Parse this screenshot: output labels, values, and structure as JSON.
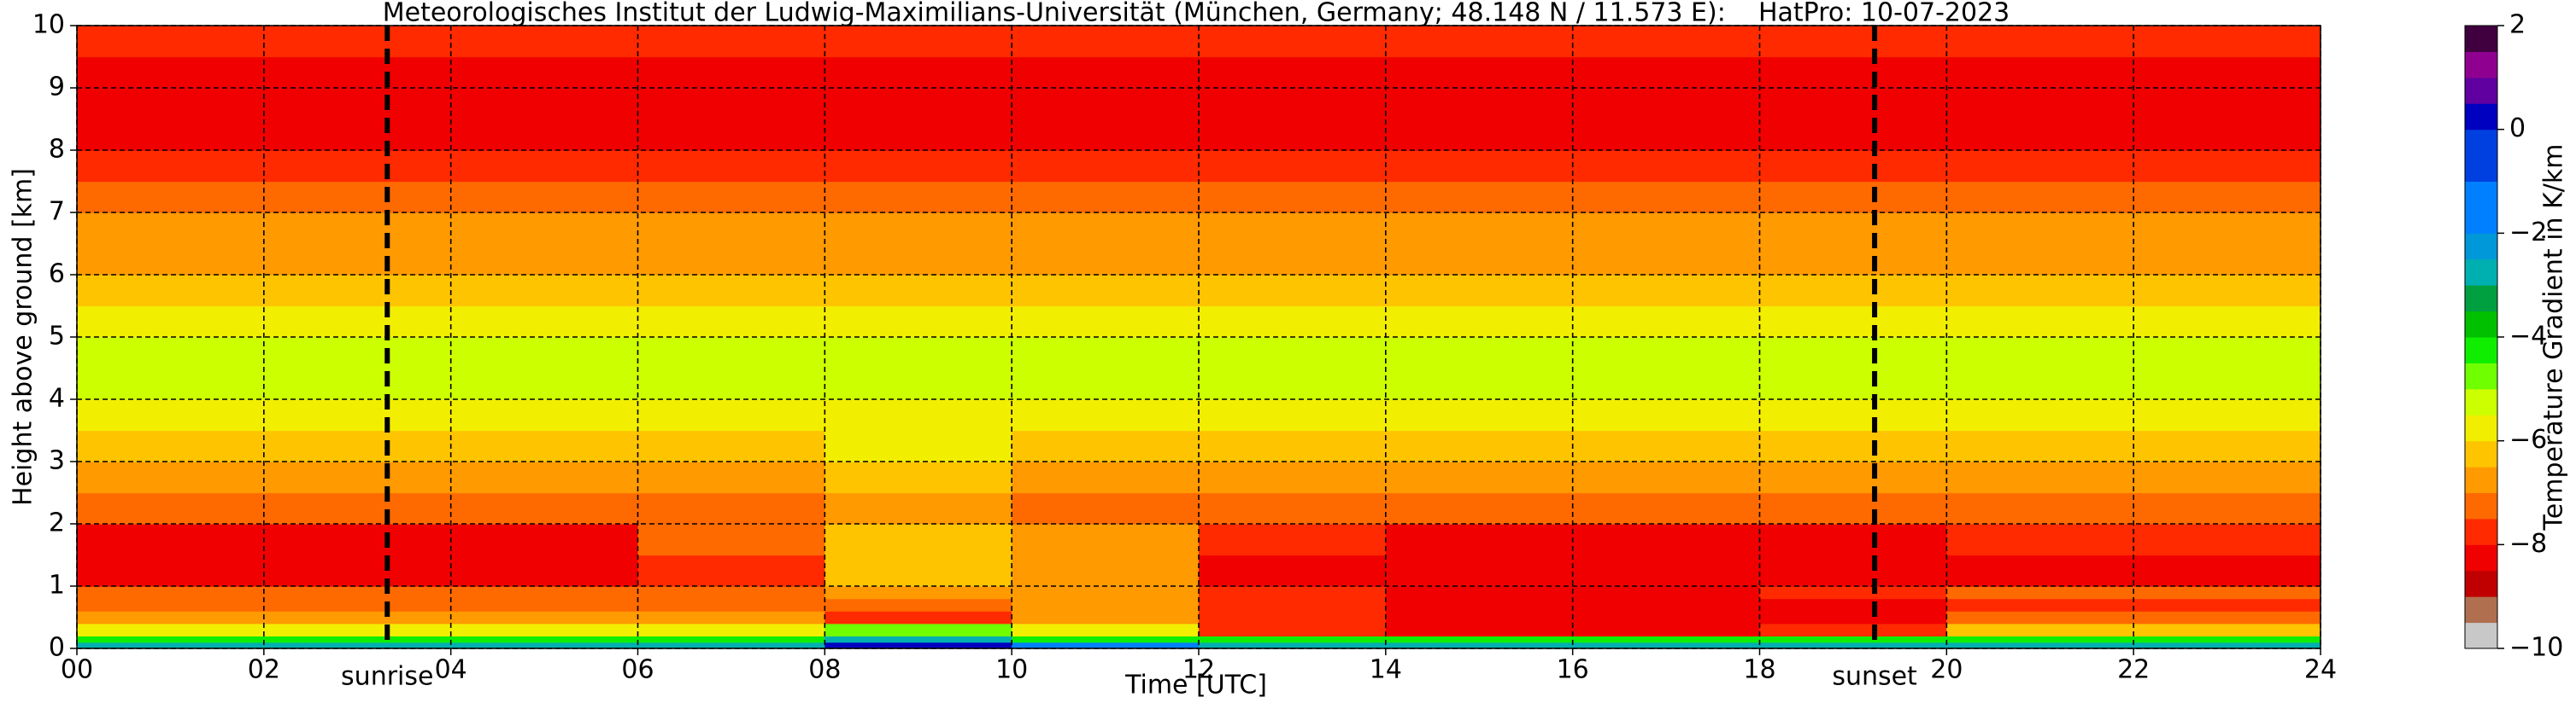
{
  "chart_data": {
    "type": "heatmap",
    "title": "Meteorologisches Institut der Ludwig-Maximilians-Universität (München, Germany; 48.148 N / 11.573 E):    HatPro: 10-07-2023",
    "xlabel": "Time [UTC]",
    "ylabel": "Height above ground [km]",
    "colorbar_label": "Temperature Gradient in K/km",
    "xlim": [
      0,
      24
    ],
    "ylim": [
      0,
      10
    ],
    "xticks": [
      {
        "value": 0,
        "label": "00"
      },
      {
        "value": 2,
        "label": "02"
      },
      {
        "value": 4,
        "label": "04"
      },
      {
        "value": 6,
        "label": "06"
      },
      {
        "value": 8,
        "label": "08"
      },
      10,
      12,
      14,
      16,
      18,
      20,
      22,
      24
    ],
    "yticks": [
      0,
      1,
      2,
      3,
      4,
      5,
      6,
      7,
      8,
      9,
      10
    ],
    "grid": true,
    "clim": [
      -10,
      2
    ],
    "cticks": [
      2,
      0,
      {
        "value": -2,
        "label": "−2"
      },
      {
        "value": -4,
        "label": "−4"
      },
      {
        "value": -6,
        "label": "−6"
      },
      {
        "value": -8,
        "label": "−8"
      },
      {
        "value": -10,
        "label": "−10"
      }
    ],
    "colorscale": [
      [
        -10,
        "#c8c8c8"
      ],
      [
        -9.5,
        "#b07050"
      ],
      [
        -9,
        "#c00000"
      ],
      [
        -8.5,
        "#f00000"
      ],
      [
        -8,
        "#ff2a00"
      ],
      [
        -7.5,
        "#ff6a00"
      ],
      [
        -7,
        "#ff9a00"
      ],
      [
        -6.5,
        "#ffc400"
      ],
      [
        -6,
        "#f2ee00"
      ],
      [
        -5.5,
        "#ccff00"
      ],
      [
        -5,
        "#70ff00"
      ],
      [
        -4.5,
        "#10ee00"
      ],
      [
        -4,
        "#00c000"
      ],
      [
        -3.5,
        "#00a040"
      ],
      [
        -3,
        "#00b0b0"
      ],
      [
        -2.5,
        "#0098d8"
      ],
      [
        -2,
        "#0080ff"
      ],
      [
        -1,
        "#0040e0"
      ],
      [
        0,
        "#0000c0"
      ],
      [
        0.5,
        "#6000a0"
      ],
      [
        1,
        "#900090"
      ],
      [
        1.5,
        "#400040"
      ],
      [
        2,
        "#000000"
      ]
    ],
    "x_edges": [
      0,
      2,
      4,
      6,
      8,
      10,
      12,
      14,
      16,
      18,
      20,
      22,
      24
    ],
    "y_edges": [
      0,
      0.1,
      0.2,
      0.4,
      0.6,
      0.8,
      1.0,
      1.5,
      2.0,
      2.5,
      3,
      3.5,
      4,
      4.5,
      5,
      5.5,
      6,
      6.5,
      7,
      7.5,
      8,
      8.5,
      9,
      9.5,
      10
    ],
    "values": [
      [
        -3,
        -3,
        -3,
        -3,
        0,
        -2,
        -3,
        -3,
        -3,
        -3,
        -3,
        -3
      ],
      [
        -4.5,
        -4.5,
        -4.5,
        -4.5,
        -3,
        -4.5,
        -4.5,
        -4.5,
        -4.5,
        -4.5,
        -4.5,
        -4.5
      ],
      [
        -6,
        -6,
        -6,
        -6,
        -5,
        -6,
        -8,
        -8.5,
        -8.5,
        -8,
        -6.5,
        -6.5
      ],
      [
        -7,
        -7,
        -7,
        -7,
        -8,
        -7,
        -8,
        -8.5,
        -8.5,
        -8.5,
        -7.5,
        -7.5
      ],
      [
        -7.5,
        -7.5,
        -7.5,
        -7.5,
        -7.5,
        -7,
        -8,
        -8.5,
        -8.5,
        -8.5,
        -8,
        -8
      ],
      [
        -7.5,
        -7.5,
        -7.5,
        -7.5,
        -7,
        -7,
        -8,
        -8.5,
        -8.5,
        -8,
        -7.5,
        -7.5
      ],
      [
        -8.5,
        -8.5,
        -8.5,
        -8,
        -6.5,
        -7,
        -8.5,
        -8.5,
        -8.5,
        -8.5,
        -8.5,
        -8.5
      ],
      [
        -8.5,
        -8.5,
        -8.5,
        -7.5,
        -6.5,
        -7,
        -8,
        -8.5,
        -8.5,
        -8.5,
        -8,
        -8
      ],
      [
        -7.5,
        -7.5,
        -7.5,
        -7.5,
        -7,
        -7.5,
        -7.5,
        -7.5,
        -7.5,
        -7.5,
        -7.5,
        -7.5
      ],
      [
        -7,
        -7,
        -7,
        -7,
        -6.5,
        -7,
        -7,
        -7,
        -7,
        -7,
        -7,
        -7
      ],
      [
        -6.5,
        -6.5,
        -6.5,
        -6.5,
        -6,
        -6.5,
        -6.5,
        -6.5,
        -6.5,
        -6.5,
        -6.5,
        -6.5
      ],
      [
        -6,
        -6,
        -6,
        -6,
        -6,
        -6,
        -6,
        -6,
        -6,
        -6,
        -6,
        -6
      ],
      [
        -5.5,
        -5.5,
        -5.5,
        -5.5,
        -5.5,
        -5.5,
        -5.5,
        -5.5,
        -5.5,
        -5.5,
        -5.5,
        -5.5
      ],
      [
        -5.5,
        -5.5,
        -5.5,
        -5.5,
        -5.5,
        -5.5,
        -5.5,
        -5.5,
        -5.5,
        -5.5,
        -5.5,
        -5.5
      ],
      [
        -6,
        -6,
        -6,
        -6,
        -6,
        -6,
        -6,
        -6,
        -6,
        -6,
        -6,
        -6
      ],
      [
        -6.5,
        -6.5,
        -6.5,
        -6.5,
        -6.5,
        -6.5,
        -6.5,
        -6.5,
        -6.5,
        -6.5,
        -6.5,
        -6.5
      ],
      [
        -7,
        -7,
        -7,
        -7,
        -7,
        -7,
        -7,
        -7,
        -7,
        -7,
        -7,
        -7
      ],
      [
        -7,
        -7,
        -7,
        -7,
        -7,
        -7,
        -7,
        -7,
        -7,
        -7,
        -7,
        -7
      ],
      [
        -7.5,
        -7.5,
        -7.5,
        -7.5,
        -7.5,
        -7.5,
        -7.5,
        -7.5,
        -7.5,
        -7.5,
        -7.5,
        -7.5
      ],
      [
        -8,
        -8,
        -8,
        -8,
        -8,
        -8,
        -8,
        -8,
        -8,
        -8,
        -8,
        -8
      ],
      [
        -8.5,
        -8.5,
        -8.5,
        -8.5,
        -8.5,
        -8.5,
        -8.5,
        -8.5,
        -8.5,
        -8.5,
        -8.5,
        -8.5
      ],
      [
        -8.5,
        -8.5,
        -8.5,
        -8.5,
        -8.5,
        -8.5,
        -8.5,
        -8.5,
        -8.5,
        -8.5,
        -8.5,
        -8.5
      ],
      [
        -8.5,
        -8.5,
        -8.5,
        -8.5,
        -8.5,
        -8.5,
        -8.5,
        -8.5,
        -8.5,
        -8.5,
        -8.5,
        -8.5
      ],
      [
        -8,
        -8,
        -8,
        -8,
        -8,
        -8,
        -8,
        -8,
        -8,
        -8,
        -8,
        -8
      ]
    ],
    "annotations": [
      {
        "text": "sunrise",
        "x": 3.32
      },
      {
        "text": "sunset",
        "x": 19.23
      }
    ]
  }
}
